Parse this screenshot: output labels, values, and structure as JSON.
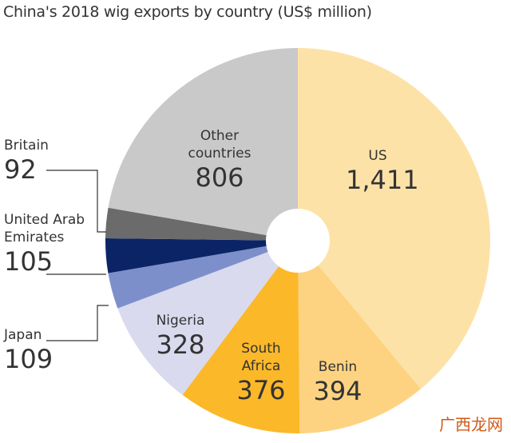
{
  "chart_data": {
    "type": "pie",
    "title": "China's 2018 wig exports by country (US$ million)",
    "categories": [
      "US",
      "Benin",
      "South Africa",
      "Nigeria",
      "Japan",
      "United Arab Emirates",
      "Britain",
      "Other countries"
    ],
    "values": [
      1411,
      394,
      376,
      328,
      109,
      105,
      92,
      806
    ],
    "value_labels": [
      "1,411",
      "394",
      "376",
      "328",
      "109",
      "105",
      "92",
      "806"
    ],
    "colors": [
      "#fde2a8",
      "#fdd382",
      "#fbb829",
      "#d9daee",
      "#7d8fca",
      "#0b2466",
      "#6b6b6b",
      "#c9c9c9"
    ],
    "donut": true
  },
  "watermark": "广西龙网"
}
